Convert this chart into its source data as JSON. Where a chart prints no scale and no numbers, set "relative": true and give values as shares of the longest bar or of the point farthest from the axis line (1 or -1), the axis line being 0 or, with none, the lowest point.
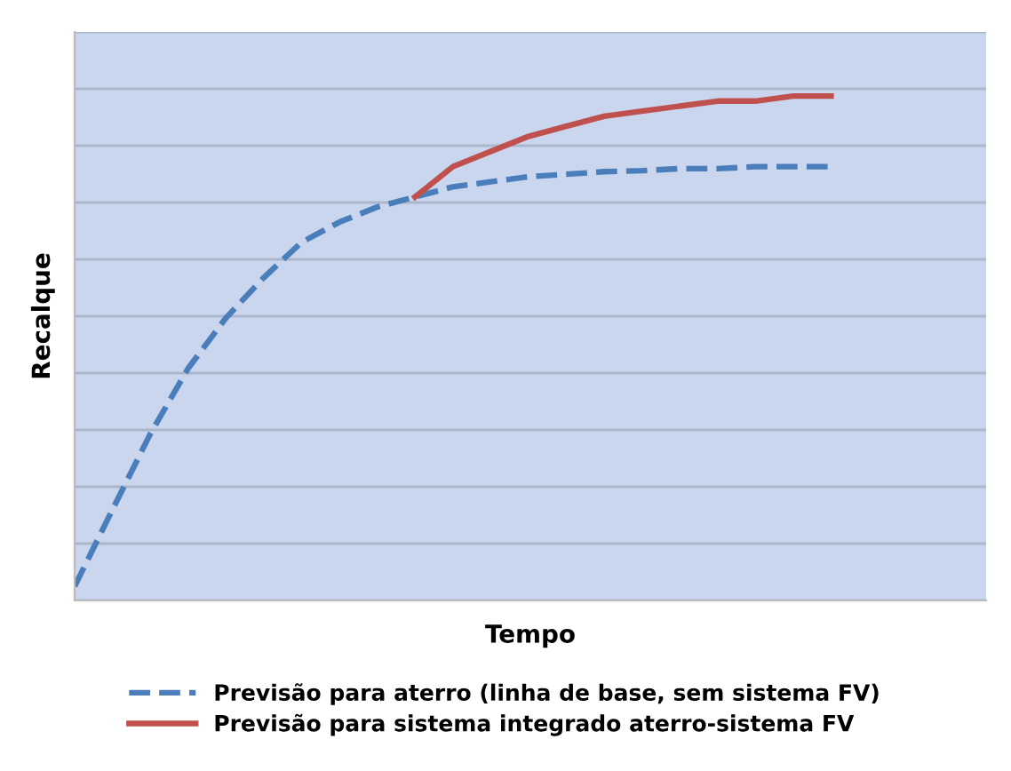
{
  "chart_data": {
    "type": "line",
    "relative": true,
    "xlabel": "Tempo",
    "ylabel": "Recalque",
    "grid": "y",
    "legend": "bottom",
    "marker": "none",
    "categories": [
      null,
      null,
      null,
      null,
      null,
      null,
      null,
      null,
      null,
      null,
      null,
      null,
      null,
      null,
      null,
      null,
      null,
      null,
      null,
      null,
      null,
      null,
      null,
      null,
      null
    ],
    "series": [
      {
        "name": "Previsão para aterro (linha de base, sem sistema FV)",
        "color": "#4a7ebb",
        "line_style": "dashed",
        "values": [
          0.028,
          0.18,
          0.33,
          0.46,
          0.56,
          0.64,
          0.71,
          0.75,
          0.78,
          0.8,
          0.82,
          0.83,
          0.84,
          0.845,
          0.85,
          0.852,
          0.856,
          0.856,
          0.86,
          0.86,
          0.86,
          null,
          null,
          null,
          null
        ]
      },
      {
        "name": "Previsão para sistema integrado aterro-sistema FV",
        "color": "#c0504d",
        "line_style": "solid",
        "values": [
          null,
          null,
          null,
          null,
          null,
          null,
          null,
          null,
          null,
          0.8,
          0.86,
          0.89,
          0.92,
          0.94,
          0.96,
          0.97,
          0.98,
          0.99,
          0.99,
          1.0,
          1.0,
          null,
          null,
          null,
          null
        ]
      }
    ]
  }
}
